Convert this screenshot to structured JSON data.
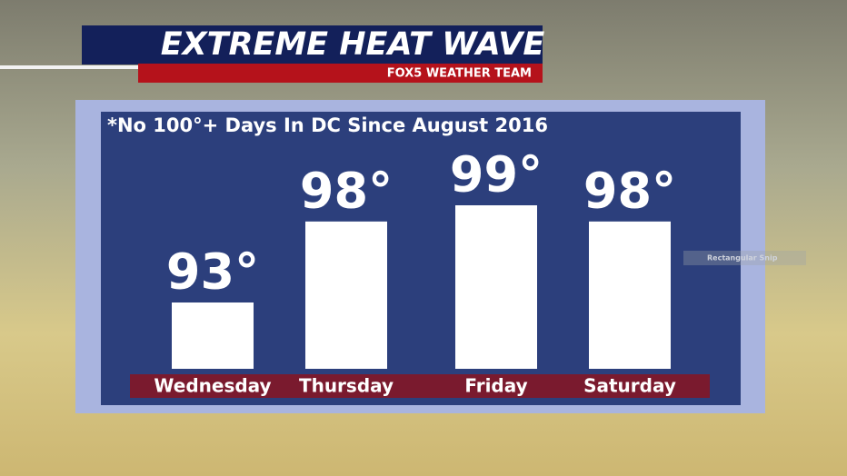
{
  "chart_data": {
    "type": "bar",
    "title": "EXTREME HEAT WAVE",
    "subtitle": "FOX5 WEATHER TEAM",
    "annotation": "*No 100°+ Days In DC Since August 2016",
    "watermark": "Rectangular Snip",
    "categories": [
      "Wednesday",
      "Thursday",
      "Friday",
      "Saturday"
    ],
    "values": [
      93,
      98,
      99,
      98
    ],
    "value_labels": [
      "93°",
      "98°",
      "99°",
      "98°"
    ],
    "color": "#ffffff"
  }
}
